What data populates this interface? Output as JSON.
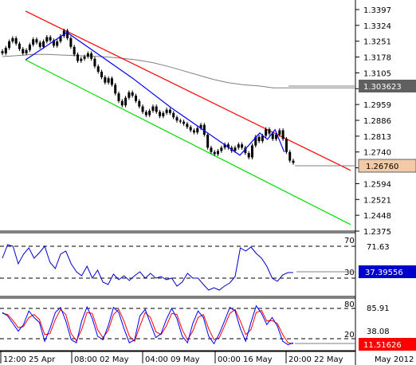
{
  "main_panel": {
    "price_ticks": [
      "1.3397",
      "1.3324",
      "1.3251",
      "1.3178",
      "1.3105",
      "1.3032",
      "1.2959",
      "1.2886",
      "1.2813",
      "1.2740",
      "1.2667",
      "1.2594",
      "1.2521",
      "1.2448",
      "1.2375"
    ],
    "price_min": 1.2375,
    "price_max": 1.3397,
    "ma_badge": "1.303623",
    "price_badge": "1.26760",
    "colors": {
      "candles": "#000000",
      "upper_channel": "#ff0000",
      "lower_channel": "#00dd00",
      "zigzag": "#0000ff",
      "moving_average": "#808080",
      "ma_badge_bg": "#606060",
      "price_badge_bg": "#f2caa8"
    }
  },
  "rsi_panel": {
    "level_high": "70",
    "level_low": "30",
    "value_label": "71.63",
    "badge": "37.39556",
    "colors": {
      "line": "#0000cc",
      "badge_bg": "#0000cc"
    }
  },
  "stoch_panel": {
    "level_high": "80",
    "level_low": "20",
    "value_label_1": "85.91",
    "value_label_2": "38.08",
    "badge": "11.51626",
    "colors": {
      "main": "#0000ff",
      "signal": "#ff0000",
      "badge_bg": "#ff0000"
    }
  },
  "time_axis": {
    "labels": [
      "12:00 25 Apr",
      "08:00 02 May",
      "04:00 09 May",
      "00:00 16 May",
      "20:00 22 May"
    ],
    "right_label": "May 2012"
  },
  "chart_data": {
    "type": "candlestick",
    "instrument_price_range": [
      1.2375,
      1.3397
    ],
    "closes": [
      1.3195,
      1.322,
      1.325,
      1.3265,
      1.324,
      1.3215,
      1.3195,
      1.321,
      1.3235,
      1.326,
      1.3245,
      1.3225,
      1.325,
      1.327,
      1.3255,
      1.323,
      1.325,
      1.3275,
      1.33,
      1.3265,
      1.3225,
      1.319,
      1.316,
      1.317,
      1.318,
      1.3195,
      1.317,
      1.3135,
      1.311,
      1.3085,
      1.306,
      1.308,
      1.305,
      1.301,
      1.2975,
      1.2955,
      1.299,
      1.3015,
      1.3,
      1.2975,
      1.295,
      1.2925,
      1.291,
      1.293,
      1.295,
      1.2925,
      1.2905,
      1.292,
      1.2935,
      1.292,
      1.29,
      1.2885,
      1.288,
      1.287,
      1.2855,
      1.284,
      1.283,
      1.285,
      1.2865,
      1.282,
      1.276,
      1.274,
      1.273,
      1.2745,
      1.276,
      1.2775,
      1.276,
      1.2745,
      1.276,
      1.2775,
      1.276,
      1.2735,
      1.2715,
      1.277,
      1.281,
      1.279,
      1.2815,
      1.2845,
      1.2825,
      1.28,
      1.282,
      1.284,
      1.28,
      1.274,
      1.27,
      1.269
    ],
    "moving_average": [
      1.318,
      1.3185,
      1.319,
      1.319,
      1.3187,
      1.3185,
      1.3182,
      1.3178,
      1.3172,
      1.3164,
      1.3152,
      1.3135,
      1.3115,
      1.3095,
      1.3075,
      1.306,
      1.305,
      1.3045,
      1.3036,
      1.3036
    ],
    "upper_channel": [
      [
        1.339,
        0
      ],
      [
        1.2655,
        1
      ]
    ],
    "lower_channel": [
      [
        1.3165,
        0
      ],
      [
        1.2405,
        1
      ]
    ],
    "zigzag": [
      [
        0.0,
        1.3165
      ],
      [
        0.135,
        1.3292
      ],
      [
        0.35,
        1.308
      ],
      [
        0.475,
        1.2945
      ],
      [
        0.7,
        1.2725
      ],
      [
        0.765,
        1.2828
      ],
      [
        0.79,
        1.2798
      ],
      [
        0.815,
        1.2843
      ],
      [
        0.845,
        1.274
      ]
    ],
    "rsi": {
      "levels": [
        70,
        30
      ],
      "range": [
        0,
        100
      ],
      "values": [
        55,
        72,
        70,
        48,
        60,
        68,
        55,
        62,
        70,
        50,
        42,
        60,
        64,
        48,
        38,
        33,
        45,
        30,
        40,
        25,
        22,
        35,
        28,
        33,
        27,
        33,
        38,
        30,
        36,
        30,
        32,
        28,
        30,
        20,
        25,
        36,
        30,
        30,
        22,
        15,
        18,
        15,
        20,
        24,
        32,
        68,
        64,
        69,
        61,
        55,
        45,
        30,
        26,
        34,
        37,
        37
      ]
    },
    "stochastic": {
      "levels": [
        80,
        20
      ],
      "range": [
        0,
        100
      ],
      "main": [
        72,
        65,
        50,
        35,
        48,
        75,
        62,
        52,
        15,
        40,
        72,
        82,
        55,
        18,
        12,
        55,
        83,
        60,
        25,
        18,
        45,
        82,
        72,
        40,
        12,
        18,
        65,
        78,
        50,
        22,
        30,
        58,
        80,
        60,
        25,
        12,
        50,
        75,
        62,
        25,
        10,
        30,
        55,
        82,
        75,
        40,
        15,
        52,
        85,
        70,
        48,
        62,
        45,
        15,
        8,
        12
      ],
      "signal": [
        70,
        68,
        56,
        42,
        44,
        62,
        68,
        58,
        28,
        30,
        58,
        78,
        68,
        30,
        16,
        38,
        72,
        70,
        38,
        22,
        36,
        68,
        78,
        55,
        25,
        15,
        45,
        72,
        62,
        34,
        28,
        45,
        70,
        68,
        38,
        18,
        35,
        62,
        68,
        40,
        18,
        22,
        45,
        70,
        78,
        55,
        28,
        38,
        72,
        76,
        55,
        56,
        50,
        28,
        12,
        10
      ]
    }
  }
}
